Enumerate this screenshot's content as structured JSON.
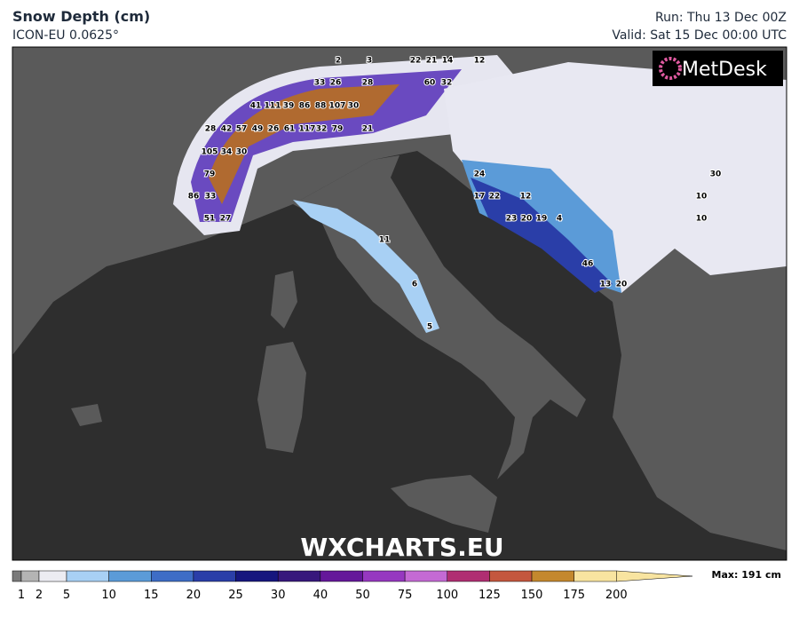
{
  "header": {
    "title": "Snow Depth (cm)",
    "model": "ICON-EU 0.0625°",
    "run": "Run: Thu 13 Dec 00Z",
    "valid": "Valid: Sat 15 Dec 00:00 UTC"
  },
  "logo": "MetDesk",
  "watermark": "WXCHARTS.EU",
  "legend": {
    "levels": [
      1,
      2,
      5,
      10,
      15,
      20,
      25,
      30,
      40,
      50,
      75,
      100,
      125,
      150,
      175,
      200
    ],
    "colors": [
      "#7a7a7a",
      "#b4b4b4",
      "#ececf2",
      "#a8d0f4",
      "#5b9bd8",
      "#3e6dc6",
      "#2a3ea8",
      "#16167e",
      "#37187c",
      "#65189a",
      "#9638c0",
      "#c46ad4",
      "#b02e72",
      "#c4573e",
      "#c4882e",
      "#f8e4a0"
    ],
    "max_label": "Max: 191 cm"
  },
  "map": {
    "point_values": [
      2,
      3,
      22,
      21,
      14,
      12,
      33,
      26,
      28,
      60,
      32,
      41,
      111,
      39,
      86,
      88,
      107,
      30,
      28,
      42,
      57,
      49,
      26,
      61,
      117,
      32,
      79,
      21,
      105,
      34,
      30,
      79,
      86,
      33,
      51,
      27,
      24,
      17,
      22,
      12,
      23,
      20,
      19,
      4,
      46,
      13,
      20,
      30,
      10,
      10,
      11,
      6,
      5
    ]
  }
}
